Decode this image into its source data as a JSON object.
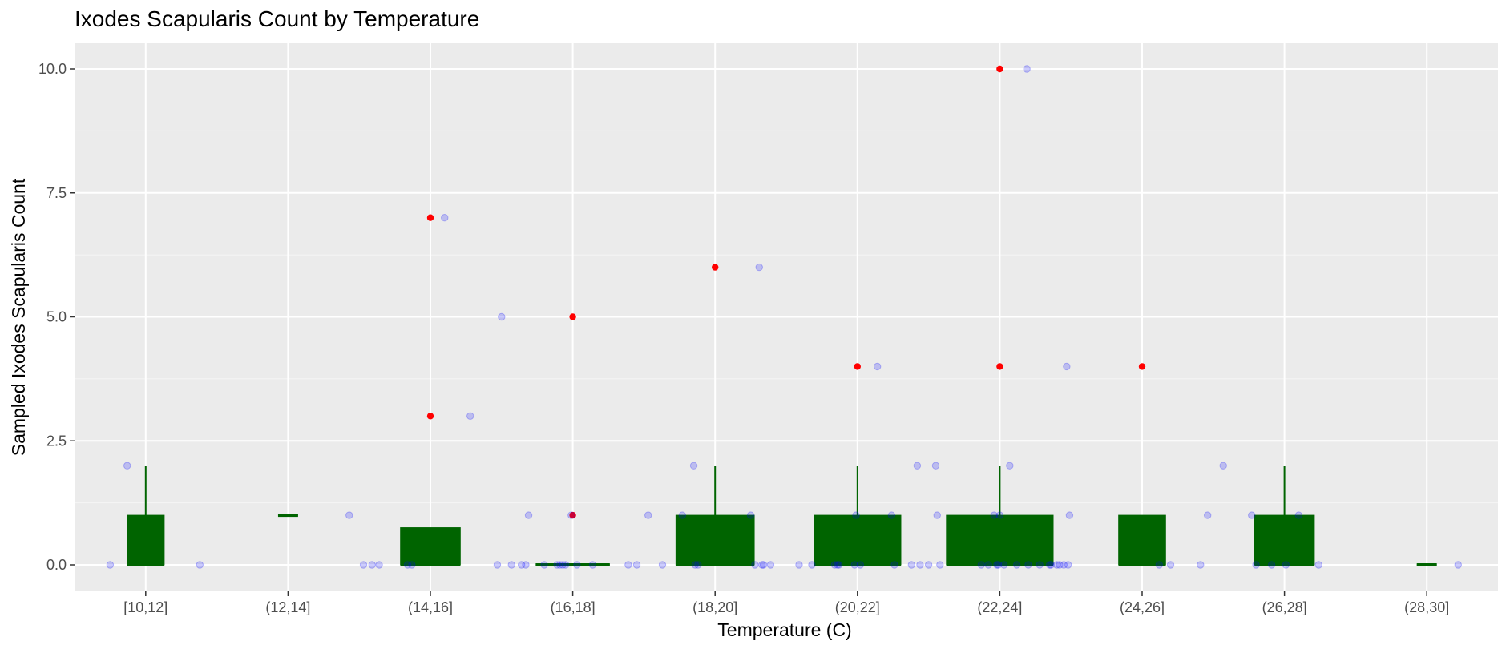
{
  "chart_data": {
    "type": "boxplot",
    "title": "Ixodes Scapularis Count by Temperature",
    "xlabel": "Temperature (C)",
    "ylabel": "Sampled Ixodes Scapularis Count",
    "y_ticks": [
      0.0,
      2.5,
      5.0,
      7.5,
      10.0
    ],
    "y_tick_labels": [
      "0.0",
      "2.5",
      "5.0",
      "7.5",
      "10.0"
    ],
    "ylim": [
      -0.5,
      10.5
    ],
    "grid": true,
    "categories": [
      "[10,12]",
      "(12,14]",
      "(14,16]",
      "(16,18]",
      "(18,20]",
      "(20,22]",
      "(22,24]",
      "(24,26]",
      "(26,28]",
      "(28,30]"
    ],
    "boxes": [
      {
        "category": "[10,12]",
        "q1": 0,
        "median": 0,
        "q3": 1,
        "whisker_low": 0,
        "whisker_high": 2,
        "rel_width": 0.26
      },
      {
        "category": "(12,14]",
        "q1": 1,
        "median": 1,
        "q3": 1,
        "whisker_low": 1,
        "whisker_high": 1,
        "rel_width": 0.14
      },
      {
        "category": "(14,16]",
        "q1": 0,
        "median": 0,
        "q3": 0.75,
        "whisker_low": 0,
        "whisker_high": 0.75,
        "rel_width": 0.42
      },
      {
        "category": "(16,18]",
        "q1": 0,
        "median": 0,
        "q3": 0,
        "whisker_low": 0,
        "whisker_high": 0,
        "rel_width": 0.52
      },
      {
        "category": "(18,20]",
        "q1": 0,
        "median": 0,
        "q3": 1,
        "whisker_low": 0,
        "whisker_high": 2,
        "rel_width": 0.55
      },
      {
        "category": "(20,22]",
        "q1": 0,
        "median": 0,
        "q3": 1,
        "whisker_low": 0,
        "whisker_high": 2,
        "rel_width": 0.61
      },
      {
        "category": "(22,24]",
        "q1": 0,
        "median": 0,
        "q3": 1,
        "whisker_low": 0,
        "whisker_high": 2,
        "rel_width": 0.75
      },
      {
        "category": "(24,26]",
        "q1": 0,
        "median": 0,
        "q3": 1,
        "whisker_low": 0,
        "whisker_high": 1,
        "rel_width": 0.33
      },
      {
        "category": "(26,28]",
        "q1": 0,
        "median": 0,
        "q3": 1,
        "whisker_low": 0,
        "whisker_high": 2,
        "rel_width": 0.42
      },
      {
        "category": "(28,30]",
        "q1": 0,
        "median": 0,
        "q3": 0,
        "whisker_low": 0,
        "whisker_high": 0,
        "rel_width": 0.14
      }
    ],
    "outliers": [
      {
        "category": "(14,16]",
        "y": 7
      },
      {
        "category": "(14,16]",
        "y": 3
      },
      {
        "category": "(16,18]",
        "y": 5
      },
      {
        "category": "(16,18]",
        "y": 1
      },
      {
        "category": "(18,20]",
        "y": 6
      },
      {
        "category": "(20,22]",
        "y": 4
      },
      {
        "category": "(22,24]",
        "y": 10
      },
      {
        "category": "(22,24]",
        "y": 4
      },
      {
        "category": "(24,26]",
        "y": 4
      }
    ],
    "jittered_points_xpos": [
      [
        0.75,
        0
      ],
      [
        0.87,
        2
      ],
      [
        1.38,
        0
      ],
      [
        2.43,
        1
      ],
      [
        2.53,
        0
      ],
      [
        2.59,
        0
      ],
      [
        2.64,
        0
      ],
      [
        2.84,
        0
      ],
      [
        2.87,
        0
      ],
      [
        3.1,
        7
      ],
      [
        3.28,
        3
      ],
      [
        3.47,
        0
      ],
      [
        3.5,
        5
      ],
      [
        3.57,
        0
      ],
      [
        3.64,
        0
      ],
      [
        3.67,
        0
      ],
      [
        3.69,
        1
      ],
      [
        3.8,
        0
      ],
      [
        3.89,
        0
      ],
      [
        3.91,
        0
      ],
      [
        3.93,
        0
      ],
      [
        3.95,
        0
      ],
      [
        3.99,
        1
      ],
      [
        4.03,
        0
      ],
      [
        4.14,
        0
      ],
      [
        4.39,
        0
      ],
      [
        4.45,
        0
      ],
      [
        4.53,
        1
      ],
      [
        4.63,
        0
      ],
      [
        4.77,
        1
      ],
      [
        4.85,
        2
      ],
      [
        4.86,
        0
      ],
      [
        4.88,
        0
      ],
      [
        5.25,
        1
      ],
      [
        5.28,
        0
      ],
      [
        5.31,
        6
      ],
      [
        5.33,
        0
      ],
      [
        5.34,
        0
      ],
      [
        5.39,
        0
      ],
      [
        5.59,
        0
      ],
      [
        5.68,
        0
      ],
      [
        5.84,
        0
      ],
      [
        5.86,
        0
      ],
      [
        5.87,
        0
      ],
      [
        5.98,
        0
      ],
      [
        5.99,
        1
      ],
      [
        6.02,
        0
      ],
      [
        6.14,
        4
      ],
      [
        6.24,
        1
      ],
      [
        6.26,
        0
      ],
      [
        6.38,
        0
      ],
      [
        6.42,
        2
      ],
      [
        6.44,
        0
      ],
      [
        6.5,
        0
      ],
      [
        6.55,
        2
      ],
      [
        6.56,
        1
      ],
      [
        6.58,
        0
      ],
      [
        6.87,
        0
      ],
      [
        6.92,
        0
      ],
      [
        6.96,
        1
      ],
      [
        6.98,
        0
      ],
      [
        6.99,
        0
      ],
      [
        7.0,
        1
      ],
      [
        7.03,
        0
      ],
      [
        7.07,
        2
      ],
      [
        7.12,
        0
      ],
      [
        7.19,
        10
      ],
      [
        7.2,
        0
      ],
      [
        7.28,
        0
      ],
      [
        7.35,
        0
      ],
      [
        7.36,
        0
      ],
      [
        7.4,
        0
      ],
      [
        7.42,
        0
      ],
      [
        7.45,
        0
      ],
      [
        7.47,
        4
      ],
      [
        7.48,
        0
      ],
      [
        7.49,
        1
      ],
      [
        8.12,
        0
      ],
      [
        8.2,
        0
      ],
      [
        8.41,
        0
      ],
      [
        8.46,
        1
      ],
      [
        8.57,
        2
      ],
      [
        8.77,
        1
      ],
      [
        8.8,
        0
      ],
      [
        8.91,
        0
      ],
      [
        9.01,
        0
      ],
      [
        9.1,
        1
      ],
      [
        9.24,
        0
      ],
      [
        10.22,
        0
      ]
    ],
    "colors": {
      "panel_background": "#ebebeb",
      "grid_major": "#ffffff",
      "grid_minor": "#f5f5f5",
      "box_fill": "#006400",
      "outlier": "#ff0000",
      "jitter_point": "#0000ff",
      "tick_label": "#4d4d4d"
    }
  }
}
